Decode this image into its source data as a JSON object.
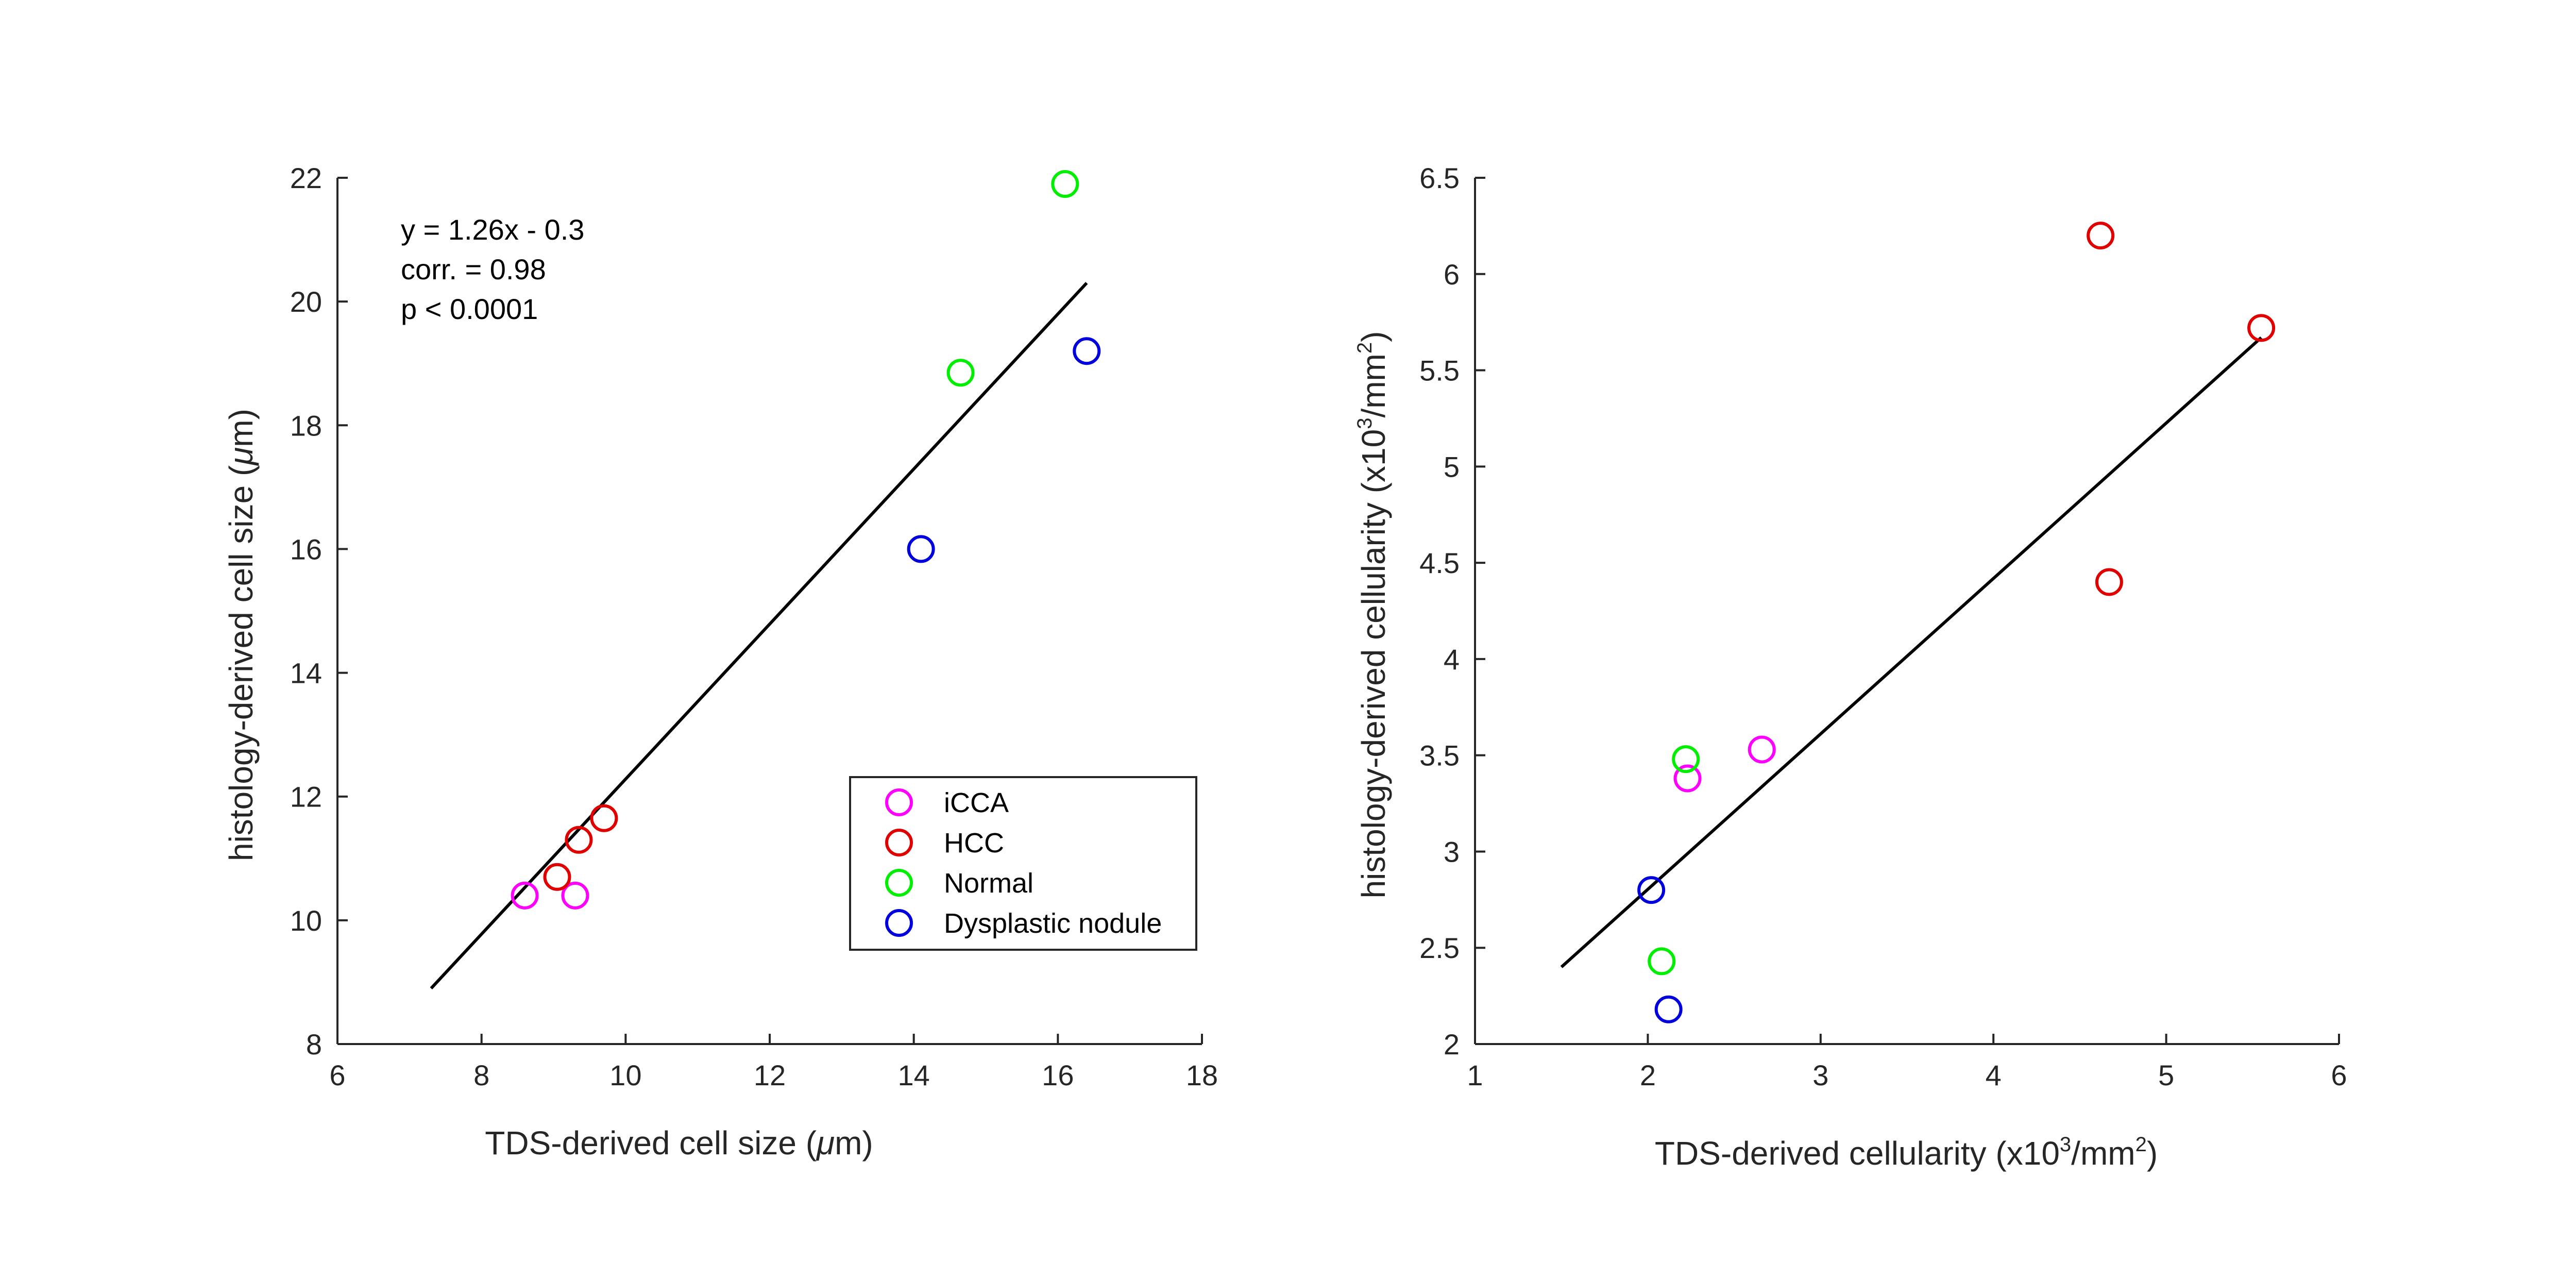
{
  "chart_data": [
    {
      "type": "scatter",
      "xlabel": {
        "pre": "TDS-derived cell size (",
        "greek": "μ",
        "post": "m)"
      },
      "ylabel": {
        "pre": "histology-derived cell size (",
        "greek": "μ",
        "post": "m)"
      },
      "xlim": [
        6,
        18
      ],
      "ylim": [
        8,
        22
      ],
      "xticks": [
        6,
        8,
        10,
        12,
        14,
        16,
        18
      ],
      "yticks": [
        8,
        10,
        12,
        14,
        16,
        18,
        20,
        22
      ],
      "annotation": [
        "y = 1.26x - 0.3",
        "corr. = 0.98",
        "p < 0.0001"
      ],
      "fit_line": {
        "x": [
          7.3,
          16.4
        ],
        "y": [
          8.9,
          20.3
        ]
      },
      "series": [
        {
          "name": "iCCA",
          "color": "#ff00ff",
          "x": [
            8.6,
            9.3
          ],
          "y": [
            10.4,
            10.4
          ]
        },
        {
          "name": "HCC",
          "color": "#e00000",
          "x": [
            9.05,
            9.35,
            9.7
          ],
          "y": [
            10.7,
            11.3,
            11.65
          ]
        },
        {
          "name": "Normal",
          "color": "#00ee00",
          "x": [
            14.65,
            16.1
          ],
          "y": [
            18.85,
            21.9
          ]
        },
        {
          "name": "Dysplastic nodule",
          "color": "#0000dd",
          "x": [
            14.1,
            16.4
          ],
          "y": [
            16.0,
            19.2
          ]
        }
      ],
      "legend": {
        "placement": "bottom-right",
        "entries": [
          {
            "label": "iCCA",
            "color": "#ff00ff"
          },
          {
            "label": "HCC",
            "color": "#e00000"
          },
          {
            "label": "Normal",
            "color": "#00ee00"
          },
          {
            "label": "Dysplastic nodule",
            "color": "#0000dd"
          }
        ]
      }
    },
    {
      "type": "scatter",
      "xlabel": {
        "pre": "TDS-derived cellularity (x10",
        "sup1": "3",
        "mid": "/mm",
        "sup2": "2",
        "post": ")"
      },
      "ylabel": {
        "pre": "histology-derived cellularity (x10",
        "sup1": "3",
        "mid": "/mm",
        "sup2": "2",
        "post": ")"
      },
      "xlim": [
        1,
        6
      ],
      "ylim": [
        2,
        6.5
      ],
      "xticks": [
        1,
        2,
        3,
        4,
        5,
        6
      ],
      "yticks": [
        2,
        2.5,
        3,
        3.5,
        4,
        4.5,
        5,
        5.5,
        6,
        6.5
      ],
      "fit_line": {
        "x": [
          1.5,
          5.55
        ],
        "y": [
          2.4,
          5.67
        ]
      },
      "series": [
        {
          "name": "iCCA",
          "color": "#ff00ff",
          "x": [
            2.23,
            2.66
          ],
          "y": [
            3.38,
            3.53
          ]
        },
        {
          "name": "HCC",
          "color": "#e00000",
          "x": [
            4.62,
            4.67,
            5.55
          ],
          "y": [
            6.2,
            4.4,
            5.72
          ]
        },
        {
          "name": "Normal",
          "color": "#00ee00",
          "x": [
            2.22,
            2.08
          ],
          "y": [
            3.48,
            2.43
          ]
        },
        {
          "name": "Dysplastic nodule",
          "color": "#0000dd",
          "x": [
            2.02,
            2.12
          ],
          "y": [
            2.8,
            2.18
          ]
        }
      ]
    }
  ]
}
